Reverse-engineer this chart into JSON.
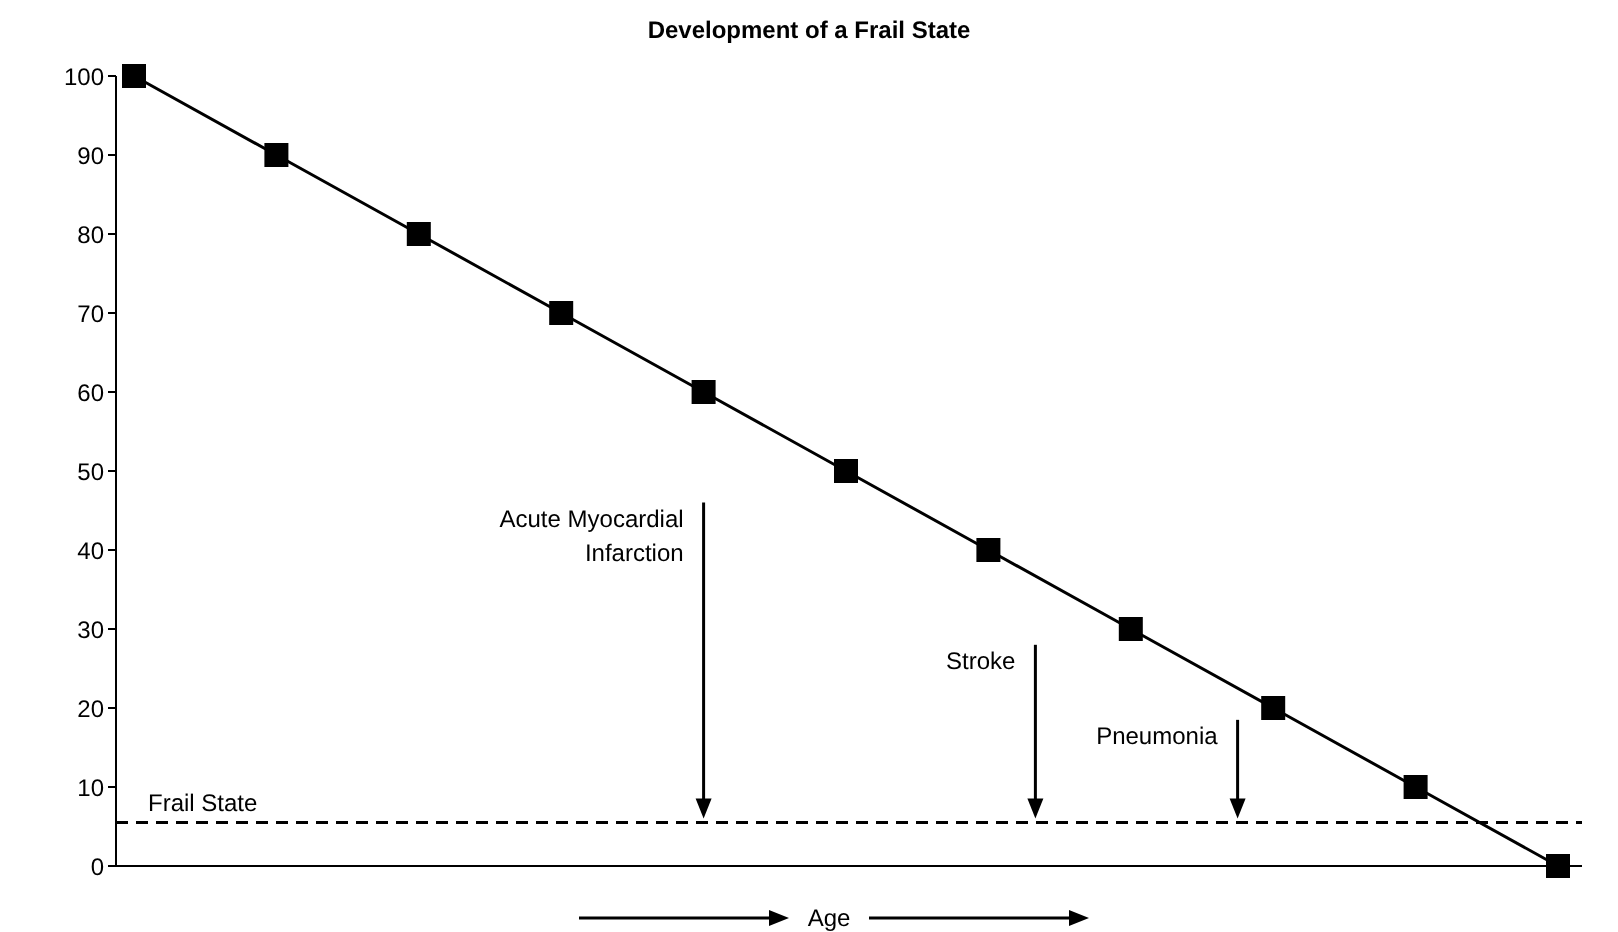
{
  "chart_data": {
    "type": "line",
    "title": "Development of a Frail State",
    "xlabel": "Age",
    "categories": [
      null,
      null,
      null,
      null,
      null,
      null,
      null,
      null,
      null,
      null,
      null
    ],
    "series": [
      {
        "color": "#000000",
        "values": [
          100,
          90,
          80,
          70,
          60,
          50,
          40,
          30,
          20,
          10,
          0
        ]
      }
    ],
    "ylim": [
      0,
      100
    ],
    "yticks": [
      0,
      10,
      20,
      30,
      40,
      50,
      60,
      70,
      80,
      90,
      100
    ],
    "grid": false,
    "legend": false,
    "marker": "square",
    "line_style": "solid",
    "ref_lines": [
      {
        "axis": "y",
        "value": 5.5,
        "label": "Frail State",
        "line_style": "dashed",
        "color": "#000000"
      }
    ],
    "annotations": [
      "Acute Myocardial Infarction",
      "Stroke",
      "Pneumonia"
    ]
  }
}
